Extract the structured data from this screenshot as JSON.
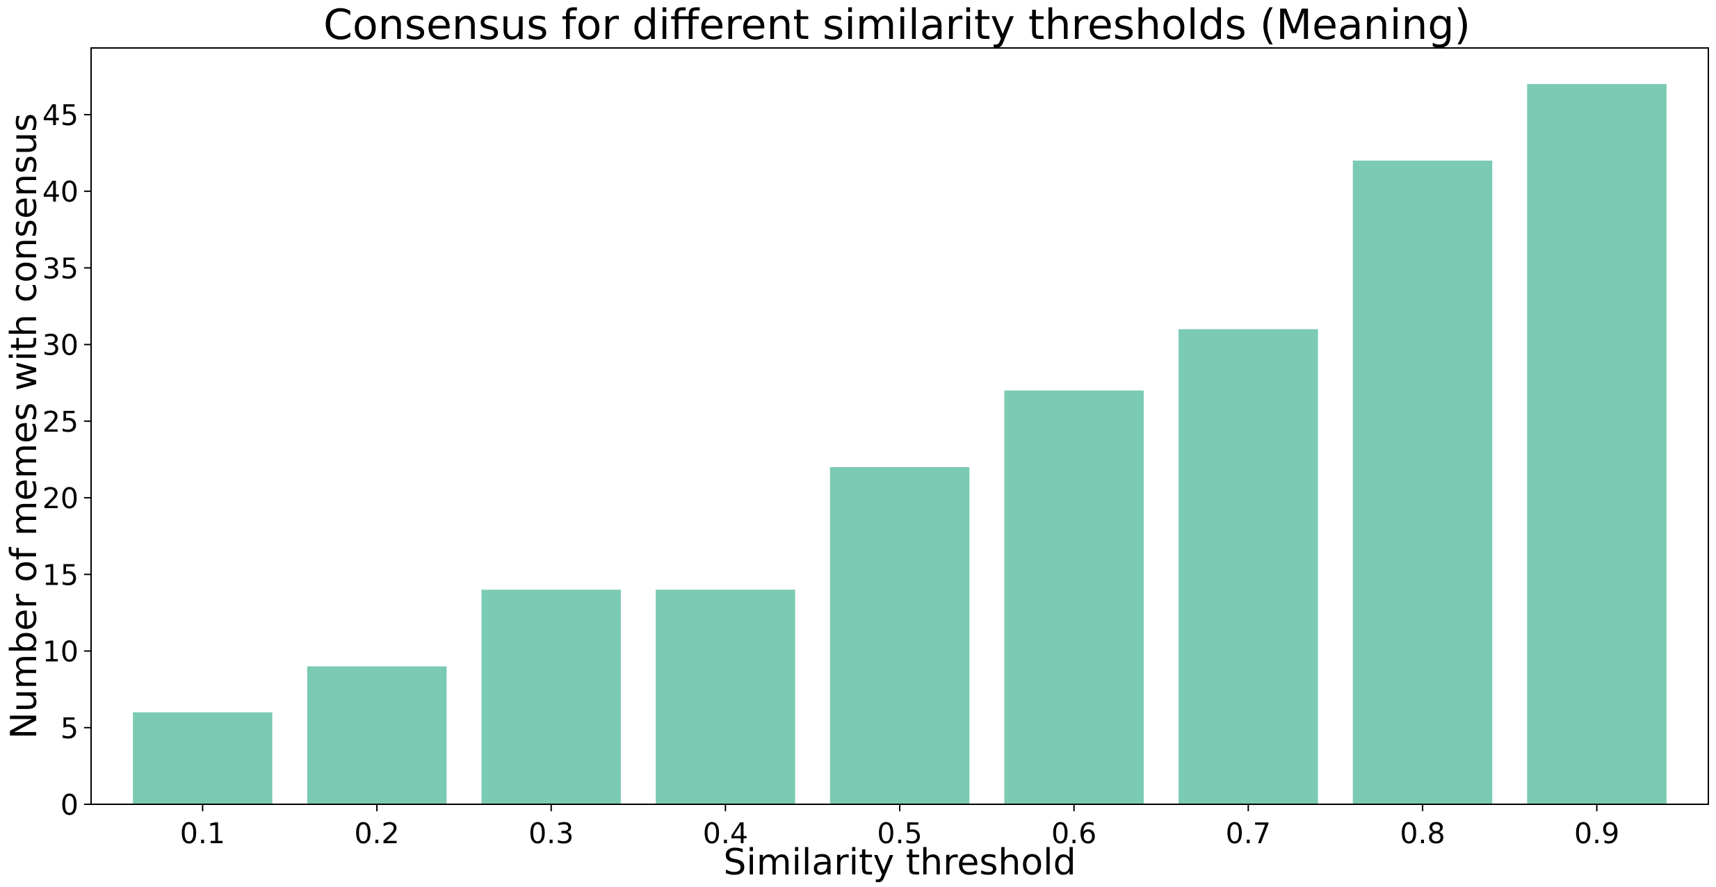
{
  "chart_data": {
    "type": "bar",
    "title": "Consensus for different similarity thresholds (Meaning)",
    "xlabel": "Similarity threshold",
    "ylabel": "Number of memes with consensus",
    "categories": [
      "0.1",
      "0.2",
      "0.3",
      "0.4",
      "0.5",
      "0.6",
      "0.7",
      "0.8",
      "0.9"
    ],
    "values": [
      6,
      9,
      14,
      14,
      22,
      27,
      31,
      42,
      47
    ],
    "yticks": [
      0,
      5,
      10,
      15,
      20,
      25,
      30,
      35,
      40,
      45
    ],
    "ylim": [
      0,
      49.35
    ],
    "grid": false,
    "legend": "none",
    "bar_color": "#7bcab3"
  }
}
